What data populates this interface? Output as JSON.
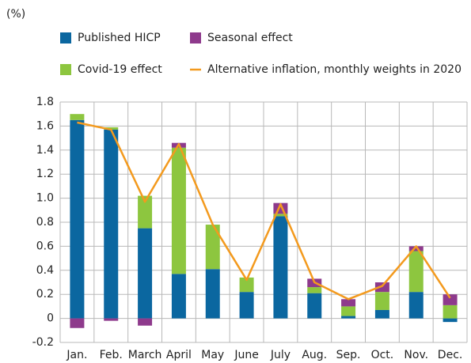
{
  "chart_data": {
    "type": "bar",
    "stacked": true,
    "unit_label": "(%)",
    "categories": [
      "Jan.",
      "Feb.",
      "March",
      "April",
      "May",
      "June",
      "July",
      "Aug.",
      "Sep.",
      "Oct.",
      "Nov.",
      "Dec."
    ],
    "series": [
      {
        "name": "Published HICP",
        "color": "#0b67a0",
        "values": [
          1.65,
          1.57,
          0.75,
          0.37,
          0.41,
          0.22,
          0.85,
          0.21,
          0.02,
          0.07,
          0.22,
          -0.03
        ]
      },
      {
        "name": "Covid-19 effect",
        "color": "#8dc63f",
        "values": [
          0.05,
          0.02,
          0.27,
          1.05,
          0.37,
          0.12,
          0.02,
          0.05,
          0.08,
          0.15,
          0.34,
          0.11
        ]
      },
      {
        "name": "Seasonal effect",
        "color": "#8e3a8c",
        "values": [
          -0.08,
          -0.02,
          -0.06,
          0.04,
          0,
          0,
          0.09,
          0.07,
          0.06,
          0.08,
          0.04,
          0.09
        ]
      },
      {
        "name": "Alternative inflation, monthly weights in 2020",
        "color": "#f39a1e",
        "type": "line",
        "values": [
          1.63,
          1.57,
          0.97,
          1.45,
          0.78,
          0.32,
          0.95,
          0.3,
          0.16,
          0.27,
          0.6,
          0.17
        ]
      }
    ],
    "ylim": [
      -0.2,
      1.8
    ],
    "yticks": [
      -0.2,
      0,
      0.2,
      0.4,
      0.6,
      0.8,
      {
        "value": 1,
        "label": "1.0"
      },
      1.2,
      1.4,
      1.6,
      1.8
    ],
    "grid": true
  }
}
